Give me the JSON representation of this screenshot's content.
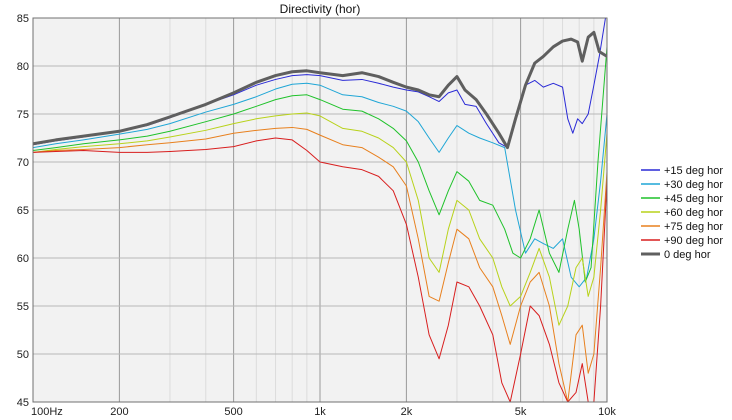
{
  "chart_data": {
    "type": "line",
    "title": "Directivity (hor)",
    "xlabel": "",
    "ylabel": "",
    "x_scale": "log",
    "xlim": [
      100,
      10000
    ],
    "ylim": [
      45,
      85
    ],
    "grid": true,
    "legend_position": "right",
    "x_ticks": [
      {
        "value": 100,
        "label": "100Hz"
      },
      {
        "value": 200,
        "label": "200"
      },
      {
        "value": 500,
        "label": "500"
      },
      {
        "value": 1000,
        "label": "1k"
      },
      {
        "value": 2000,
        "label": "2k"
      },
      {
        "value": 5000,
        "label": "5k"
      },
      {
        "value": 10000,
        "label": "10k"
      }
    ],
    "x_minor_ticks": [
      300,
      400,
      600,
      700,
      800,
      900,
      3000,
      4000,
      6000,
      7000,
      8000,
      9000
    ],
    "y_ticks": [
      45,
      50,
      55,
      60,
      65,
      70,
      75,
      80,
      85
    ],
    "series": [
      {
        "name": "+15 deg hor",
        "color": "#2a2ad6",
        "width": 1,
        "points": [
          [
            100,
            71.8
          ],
          [
            120,
            72.2
          ],
          [
            150,
            72.6
          ],
          [
            200,
            73.2
          ],
          [
            250,
            73.8
          ],
          [
            300,
            74.6
          ],
          [
            400,
            76.0
          ],
          [
            500,
            77.0
          ],
          [
            600,
            78.0
          ],
          [
            700,
            78.6
          ],
          [
            800,
            79.0
          ],
          [
            900,
            79.1
          ],
          [
            1000,
            79.0
          ],
          [
            1200,
            78.5
          ],
          [
            1400,
            78.6
          ],
          [
            1600,
            78.2
          ],
          [
            1800,
            77.8
          ],
          [
            2000,
            77.5
          ],
          [
            2200,
            77.3
          ],
          [
            2400,
            76.8
          ],
          [
            2600,
            76.3
          ],
          [
            2800,
            77.2
          ],
          [
            3000,
            77.5
          ],
          [
            3200,
            76.0
          ],
          [
            3500,
            75.8
          ],
          [
            3800,
            74.0
          ],
          [
            4200,
            72.0
          ],
          [
            4500,
            71.5
          ],
          [
            4800,
            74.5
          ],
          [
            5200,
            78.0
          ],
          [
            5600,
            78.5
          ],
          [
            6000,
            77.8
          ],
          [
            6500,
            78.2
          ],
          [
            7000,
            77.8
          ],
          [
            7300,
            74.5
          ],
          [
            7600,
            73.0
          ],
          [
            7900,
            74.5
          ],
          [
            8200,
            74.0
          ],
          [
            8600,
            75.0
          ],
          [
            9000,
            78.0
          ],
          [
            9400,
            81.0
          ],
          [
            10000,
            86.0
          ]
        ]
      },
      {
        "name": "+30 deg hor",
        "color": "#1fa6d6",
        "width": 1,
        "points": [
          [
            100,
            71.5
          ],
          [
            120,
            71.9
          ],
          [
            150,
            72.3
          ],
          [
            200,
            72.9
          ],
          [
            250,
            73.4
          ],
          [
            300,
            74.0
          ],
          [
            400,
            75.2
          ],
          [
            500,
            76.0
          ],
          [
            600,
            76.8
          ],
          [
            700,
            77.6
          ],
          [
            800,
            78.1
          ],
          [
            900,
            78.2
          ],
          [
            1000,
            78.0
          ],
          [
            1200,
            77.0
          ],
          [
            1400,
            76.8
          ],
          [
            1600,
            76.2
          ],
          [
            1800,
            75.8
          ],
          [
            2000,
            75.3
          ],
          [
            2200,
            74.2
          ],
          [
            2400,
            72.5
          ],
          [
            2600,
            71.0
          ],
          [
            2800,
            72.5
          ],
          [
            3000,
            73.8
          ],
          [
            3300,
            73.0
          ],
          [
            3600,
            72.5
          ],
          [
            4000,
            72.0
          ],
          [
            4400,
            71.5
          ],
          [
            4800,
            65.0
          ],
          [
            5200,
            60.5
          ],
          [
            5600,
            62.0
          ],
          [
            6000,
            61.5
          ],
          [
            6500,
            61.0
          ],
          [
            7000,
            62.0
          ],
          [
            7500,
            58.0
          ],
          [
            8000,
            57.0
          ],
          [
            8500,
            58.0
          ],
          [
            9000,
            62.0
          ],
          [
            9500,
            68.0
          ],
          [
            10000,
            75.0
          ]
        ]
      },
      {
        "name": "+45 deg hor",
        "color": "#1fc22a",
        "width": 1,
        "points": [
          [
            100,
            71.2
          ],
          [
            120,
            71.5
          ],
          [
            150,
            71.9
          ],
          [
            200,
            72.3
          ],
          [
            250,
            72.7
          ],
          [
            300,
            73.2
          ],
          [
            400,
            74.2
          ],
          [
            500,
            75.0
          ],
          [
            600,
            75.8
          ],
          [
            700,
            76.5
          ],
          [
            800,
            76.9
          ],
          [
            900,
            77.0
          ],
          [
            1000,
            76.5
          ],
          [
            1200,
            75.5
          ],
          [
            1400,
            75.3
          ],
          [
            1600,
            74.5
          ],
          [
            1800,
            73.5
          ],
          [
            2000,
            72.2
          ],
          [
            2200,
            70.0
          ],
          [
            2400,
            67.0
          ],
          [
            2600,
            64.5
          ],
          [
            2800,
            67.0
          ],
          [
            3000,
            69.0
          ],
          [
            3300,
            68.0
          ],
          [
            3600,
            66.0
          ],
          [
            4000,
            65.5
          ],
          [
            4400,
            63.0
          ],
          [
            4700,
            60.5
          ],
          [
            5000,
            60.0
          ],
          [
            5400,
            62.0
          ],
          [
            5800,
            65.0
          ],
          [
            6300,
            60.5
          ],
          [
            6800,
            58.5
          ],
          [
            7300,
            63.0
          ],
          [
            7700,
            66.0
          ],
          [
            8000,
            63.0
          ],
          [
            8400,
            57.5
          ],
          [
            8800,
            59.0
          ],
          [
            9300,
            70.0
          ],
          [
            10000,
            82.0
          ]
        ]
      },
      {
        "name": "+60 deg hor",
        "color": "#b8d21a",
        "width": 1,
        "points": [
          [
            100,
            71.0
          ],
          [
            120,
            71.3
          ],
          [
            150,
            71.6
          ],
          [
            200,
            71.9
          ],
          [
            250,
            72.2
          ],
          [
            300,
            72.6
          ],
          [
            400,
            73.3
          ],
          [
            500,
            74.0
          ],
          [
            600,
            74.5
          ],
          [
            700,
            74.8
          ],
          [
            800,
            75.0
          ],
          [
            900,
            75.1
          ],
          [
            1000,
            74.8
          ],
          [
            1200,
            73.5
          ],
          [
            1400,
            73.2
          ],
          [
            1600,
            72.5
          ],
          [
            1800,
            71.5
          ],
          [
            2000,
            70.0
          ],
          [
            2200,
            66.0
          ],
          [
            2400,
            60.0
          ],
          [
            2600,
            58.5
          ],
          [
            2800,
            63.0
          ],
          [
            3000,
            66.0
          ],
          [
            3300,
            65.0
          ],
          [
            3600,
            62.0
          ],
          [
            4000,
            60.0
          ],
          [
            4300,
            57.0
          ],
          [
            4600,
            55.0
          ],
          [
            5000,
            56.0
          ],
          [
            5400,
            58.5
          ],
          [
            5800,
            61.0
          ],
          [
            6300,
            58.0
          ],
          [
            6800,
            53.0
          ],
          [
            7300,
            55.0
          ],
          [
            7800,
            59.0
          ],
          [
            8200,
            60.0
          ],
          [
            8600,
            56.0
          ],
          [
            9000,
            58.0
          ],
          [
            9500,
            65.0
          ],
          [
            10000,
            73.0
          ]
        ]
      },
      {
        "name": "+75 deg hor",
        "color": "#e8801e",
        "width": 1,
        "points": [
          [
            100,
            71.0
          ],
          [
            120,
            71.2
          ],
          [
            150,
            71.3
          ],
          [
            200,
            71.5
          ],
          [
            250,
            71.8
          ],
          [
            300,
            72.0
          ],
          [
            400,
            72.4
          ],
          [
            500,
            73.0
          ],
          [
            600,
            73.3
          ],
          [
            700,
            73.5
          ],
          [
            800,
            73.6
          ],
          [
            900,
            73.4
          ],
          [
            1000,
            72.8
          ],
          [
            1200,
            71.8
          ],
          [
            1400,
            71.5
          ],
          [
            1600,
            70.5
          ],
          [
            1800,
            69.5
          ],
          [
            2000,
            67.5
          ],
          [
            2200,
            62.0
          ],
          [
            2400,
            56.0
          ],
          [
            2600,
            55.5
          ],
          [
            2800,
            59.5
          ],
          [
            3000,
            63.0
          ],
          [
            3300,
            62.0
          ],
          [
            3600,
            59.0
          ],
          [
            4000,
            57.0
          ],
          [
            4300,
            54.0
          ],
          [
            4600,
            51.0
          ],
          [
            5000,
            55.0
          ],
          [
            5400,
            57.5
          ],
          [
            5800,
            58.5
          ],
          [
            6300,
            55.0
          ],
          [
            6800,
            49.0
          ],
          [
            7300,
            45.0
          ],
          [
            7800,
            52.0
          ],
          [
            8200,
            53.0
          ],
          [
            8600,
            48.0
          ],
          [
            9000,
            50.0
          ],
          [
            9500,
            59.0
          ],
          [
            10000,
            69.0
          ]
        ]
      },
      {
        "name": "+90 deg hor",
        "color": "#d81e1e",
        "width": 1,
        "points": [
          [
            100,
            71.0
          ],
          [
            120,
            71.1
          ],
          [
            150,
            71.2
          ],
          [
            200,
            71.0
          ],
          [
            250,
            71.0
          ],
          [
            300,
            71.1
          ],
          [
            400,
            71.3
          ],
          [
            500,
            71.6
          ],
          [
            600,
            72.2
          ],
          [
            700,
            72.5
          ],
          [
            800,
            72.3
          ],
          [
            900,
            71.2
          ],
          [
            1000,
            70.0
          ],
          [
            1200,
            69.5
          ],
          [
            1400,
            69.2
          ],
          [
            1600,
            68.5
          ],
          [
            1800,
            67.0
          ],
          [
            2000,
            63.5
          ],
          [
            2200,
            58.0
          ],
          [
            2400,
            52.0
          ],
          [
            2600,
            49.5
          ],
          [
            2800,
            53.0
          ],
          [
            3000,
            57.5
          ],
          [
            3300,
            57.0
          ],
          [
            3600,
            55.0
          ],
          [
            4000,
            52.0
          ],
          [
            4300,
            47.0
          ],
          [
            4600,
            45.0
          ],
          [
            5000,
            50.0
          ],
          [
            5400,
            55.0
          ],
          [
            5800,
            54.0
          ],
          [
            6300,
            51.0
          ],
          [
            6800,
            47.0
          ],
          [
            7300,
            45.0
          ],
          [
            7800,
            46.0
          ],
          [
            8200,
            49.0
          ],
          [
            8600,
            45.0
          ],
          [
            9000,
            45.0
          ],
          [
            9500,
            55.0
          ],
          [
            10000,
            68.0
          ]
        ]
      },
      {
        "name": "0 deg hor",
        "color": "#5f5f5f",
        "width": 3,
        "points": [
          [
            100,
            71.9
          ],
          [
            120,
            72.3
          ],
          [
            150,
            72.7
          ],
          [
            200,
            73.2
          ],
          [
            250,
            73.9
          ],
          [
            300,
            74.7
          ],
          [
            400,
            76.0
          ],
          [
            500,
            77.2
          ],
          [
            600,
            78.3
          ],
          [
            700,
            79.0
          ],
          [
            800,
            79.4
          ],
          [
            900,
            79.5
          ],
          [
            1000,
            79.3
          ],
          [
            1200,
            79.0
          ],
          [
            1400,
            79.3
          ],
          [
            1600,
            78.9
          ],
          [
            1800,
            78.3
          ],
          [
            2000,
            77.8
          ],
          [
            2200,
            77.5
          ],
          [
            2400,
            77.0
          ],
          [
            2600,
            76.8
          ],
          [
            2800,
            78.0
          ],
          [
            3000,
            78.9
          ],
          [
            3200,
            77.5
          ],
          [
            3500,
            76.5
          ],
          [
            3800,
            75.0
          ],
          [
            4200,
            73.0
          ],
          [
            4500,
            71.5
          ],
          [
            4800,
            74.5
          ],
          [
            5200,
            78.0
          ],
          [
            5600,
            80.3
          ],
          [
            6000,
            81.0
          ],
          [
            6500,
            82.0
          ],
          [
            7000,
            82.6
          ],
          [
            7500,
            82.8
          ],
          [
            7900,
            82.5
          ],
          [
            8200,
            80.5
          ],
          [
            8600,
            83.0
          ],
          [
            9000,
            83.5
          ],
          [
            9400,
            81.5
          ],
          [
            10000,
            81.0
          ]
        ]
      }
    ]
  }
}
